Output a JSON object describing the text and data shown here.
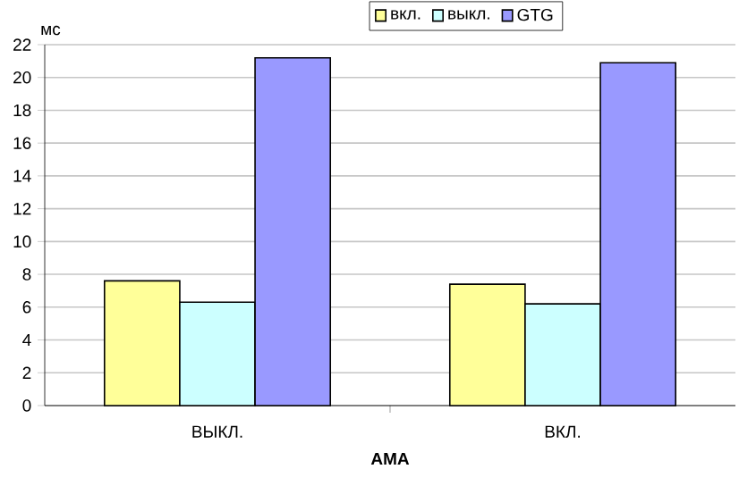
{
  "chart_data": {
    "type": "bar",
    "ylabel": "мс",
    "xlabel": "AMA",
    "categories": [
      "ВЫКЛ.",
      "ВКЛ."
    ],
    "series": [
      {
        "name": "вкл.",
        "color": "#ffff99",
        "values": [
          7.6,
          7.4
        ]
      },
      {
        "name": "выкл.",
        "color": "#ccffff",
        "values": [
          6.3,
          6.2
        ]
      },
      {
        "name": "GTG",
        "color": "#9999ff",
        "values": [
          21.2,
          20.9
        ]
      }
    ],
    "ylim": [
      0,
      22
    ],
    "yticks": [
      0,
      2,
      4,
      6,
      8,
      10,
      12,
      14,
      16,
      18,
      20,
      22
    ],
    "grid": "y",
    "legend": "top"
  }
}
